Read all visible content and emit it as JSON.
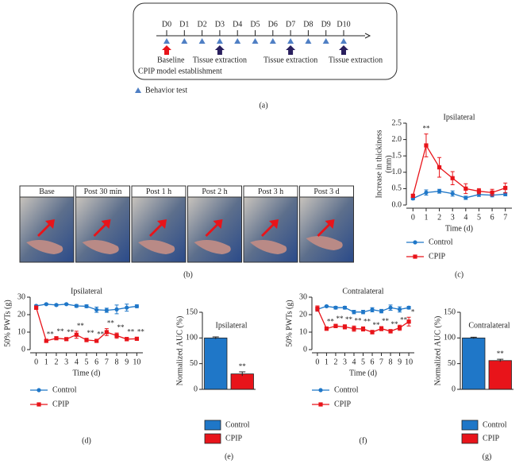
{
  "timeline": {
    "days": [
      "D0",
      "D1",
      "D2",
      "D3",
      "D4",
      "D5",
      "D6",
      "D7",
      "D8",
      "D9",
      "D10"
    ],
    "baseline": "Baseline",
    "tissue": [
      "Tissue extraction",
      "Tissue extraction",
      "Tissue extraction"
    ],
    "model": "CPIP model establishment",
    "legend": "Behavior test",
    "panel": "(a)"
  },
  "photos": {
    "labels": [
      "Base",
      "Post 30 min",
      "Post 1 h",
      "Post 2 h",
      "Post 3 h",
      "Post 3 d"
    ],
    "panel": "(b)"
  },
  "chart_data": [
    {
      "type": "line",
      "title": "Ipsilateral",
      "xlabel": "Time (d)",
      "ylabel": [
        "Increase in thickiness",
        "(mm)"
      ],
      "panel": "(c)",
      "x": [
        0,
        1,
        2,
        3,
        4,
        5,
        6,
        7
      ],
      "xlim": [
        -0.5,
        7.5
      ],
      "xticks": [
        0,
        1,
        2,
        3,
        4,
        5,
        6,
        7
      ],
      "ylim": [
        0,
        2.5
      ],
      "yticks": [
        {
          "value": 0,
          "label": "0.0"
        },
        0.5,
        {
          "value": 1,
          "label": "1.0"
        },
        1.5,
        {
          "value": 2,
          "label": "2.0"
        },
        2.5
      ],
      "series": [
        {
          "name": "Control",
          "color": "#1f77c8",
          "marker": "circle",
          "values": [
            0.2,
            0.38,
            0.42,
            0.35,
            0.22,
            0.32,
            0.3,
            0.33
          ],
          "errors": [
            0.04,
            0.08,
            0.06,
            0.08,
            0.05,
            0.06,
            0.05,
            0.05
          ]
        },
        {
          "name": "CPIP",
          "color": "#e8141a",
          "marker": "square",
          "values": [
            0.28,
            1.82,
            1.15,
            0.82,
            0.5,
            0.42,
            0.38,
            0.52
          ],
          "errors": [
            0.05,
            0.35,
            0.3,
            0.2,
            0.15,
            0.08,
            0.1,
            0.15
          ]
        }
      ],
      "significance": [
        null,
        "**",
        null,
        null,
        null,
        null,
        null,
        null
      ]
    },
    {
      "type": "line",
      "title": "Ipsilateral",
      "xlabel": "Time (d)",
      "ylabel": [
        "50% PWTs (g)"
      ],
      "panel": "(d)",
      "x": [
        0,
        1,
        2,
        3,
        4,
        5,
        6,
        7,
        8,
        9,
        10
      ],
      "xlim": [
        -0.6,
        10.6
      ],
      "xticks": [
        0,
        1,
        2,
        3,
        4,
        5,
        6,
        7,
        8,
        9,
        10
      ],
      "ylim": [
        0,
        30
      ],
      "yticks": [
        0,
        10,
        20,
        30
      ],
      "series": [
        {
          "name": "Control",
          "color": "#1f77c8",
          "marker": "circle",
          "values": [
            25,
            26,
            25.5,
            26,
            25,
            24.8,
            22.8,
            22.5,
            23,
            24,
            24.8
          ],
          "errors": [
            0.5,
            0.4,
            0.5,
            0.4,
            0.8,
            0.8,
            1.5,
            1.2,
            2.5,
            2,
            0.8
          ]
        },
        {
          "name": "CPIP",
          "color": "#e8141a",
          "marker": "square",
          "values": [
            24,
            5,
            6.5,
            6,
            8.5,
            5.5,
            5,
            10,
            8,
            6,
            6.2
          ],
          "errors": [
            1,
            0.6,
            0.8,
            0.8,
            2,
            1,
            0.8,
            2,
            1.5,
            1,
            0.8
          ]
        }
      ],
      "significance": [
        null,
        "**",
        "**",
        "**",
        "**",
        "**",
        "**",
        "**",
        "**",
        "**",
        "**"
      ]
    },
    {
      "type": "bar",
      "title": "Ipsilateral",
      "ylabel": [
        "Normalized AUC (%)"
      ],
      "panel": "(e)",
      "categories": [
        "Control",
        "CPIP"
      ],
      "colors": [
        "#1f77c8",
        "#e8141a"
      ],
      "values": [
        100,
        30
      ],
      "errors": [
        2,
        4
      ],
      "ylim": [
        0,
        150
      ],
      "yticks": [
        0,
        50,
        100,
        150
      ],
      "significance": [
        null,
        "**"
      ]
    },
    {
      "type": "line",
      "title": "Contralateral",
      "xlabel": "Time (d)",
      "ylabel": [
        "50% PWTs (g)"
      ],
      "panel": "(f)",
      "x": [
        0,
        1,
        2,
        3,
        4,
        5,
        6,
        7,
        8,
        9,
        10
      ],
      "xlim": [
        -0.6,
        10.6
      ],
      "xticks": [
        0,
        1,
        2,
        3,
        4,
        5,
        6,
        7,
        8,
        9,
        10
      ],
      "ylim": [
        0,
        30
      ],
      "yticks": [
        0,
        10,
        20,
        30
      ],
      "series": [
        {
          "name": "Control",
          "color": "#1f77c8",
          "marker": "circle",
          "values": [
            23,
            24.8,
            24,
            24,
            21.5,
            21.5,
            22.8,
            22,
            24,
            23,
            24
          ],
          "errors": [
            1,
            0.5,
            0.8,
            0.8,
            1,
            1,
            1.2,
            1,
            1.5,
            1.5,
            0.8
          ]
        },
        {
          "name": "CPIP",
          "color": "#e8141a",
          "marker": "square",
          "values": [
            23.5,
            12,
            13.5,
            13,
            12,
            11.8,
            10,
            12,
            10.5,
            12.5,
            16
          ],
          "errors": [
            1.5,
            1,
            1,
            1.2,
            1.5,
            1.2,
            1,
            1.2,
            1,
            1.5,
            2.5
          ]
        }
      ],
      "significance": [
        null,
        "**",
        "**",
        "**",
        "**",
        "**",
        "**",
        "**",
        "**",
        "**",
        "*"
      ]
    },
    {
      "type": "bar",
      "title": "Contralateral",
      "ylabel": [
        "Normalized AUC (%)"
      ],
      "panel": "(g)",
      "categories": [
        "Control",
        "CPIP"
      ],
      "colors": [
        "#1f77c8",
        "#e8141a"
      ],
      "values": [
        100,
        56
      ],
      "errors": [
        1.5,
        2.5
      ],
      "ylim": [
        0,
        150
      ],
      "yticks": [
        0,
        50,
        100,
        150
      ],
      "significance": [
        null,
        "**"
      ]
    }
  ]
}
